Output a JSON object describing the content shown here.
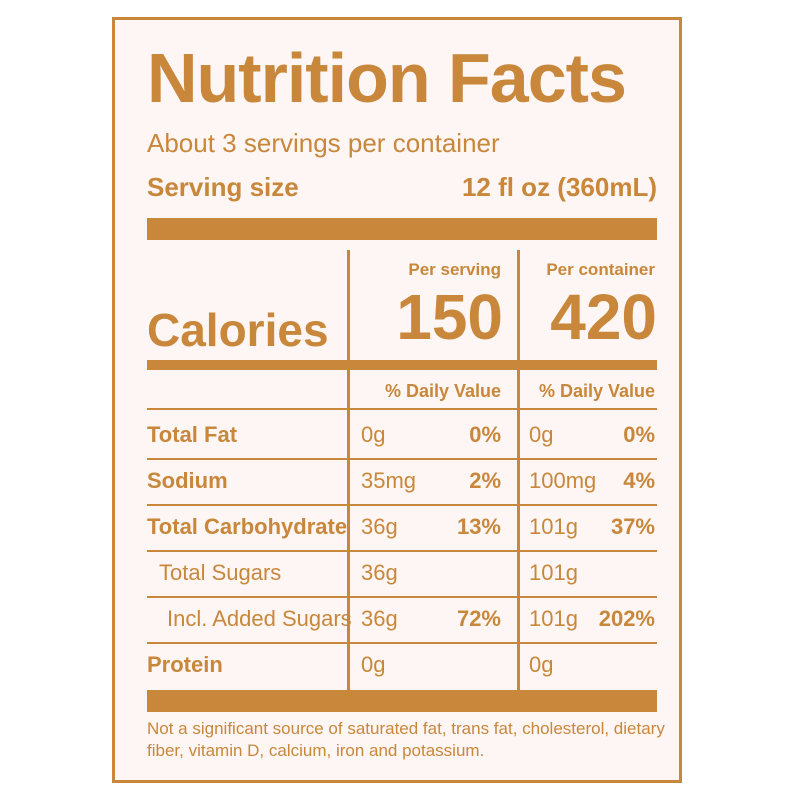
{
  "title": "Nutrition Facts",
  "servings_per_container": "About 3 servings per container",
  "serving_size": {
    "label": "Serving size",
    "value": "12 fl oz (360mL)"
  },
  "columns": {
    "per_serving": "Per serving",
    "per_container": "Per container"
  },
  "calories": {
    "label": "Calories",
    "per_serving": "150",
    "per_container": "420"
  },
  "daily_value_header": "% Daily Value",
  "nutrients": [
    {
      "name": "Total Fat",
      "bold": true,
      "serving_amount": "0g",
      "serving_dv": "0%",
      "container_amount": "0g",
      "container_dv": "0%"
    },
    {
      "name": "Sodium",
      "bold": true,
      "serving_amount": "35mg",
      "serving_dv": "2%",
      "container_amount": "100mg",
      "container_dv": "4%"
    },
    {
      "name": "Total Carbohydrate",
      "bold": true,
      "serving_amount": "36g",
      "serving_dv": "13%",
      "container_amount": "101g",
      "container_dv": "37%"
    },
    {
      "name": "Total Sugars",
      "bold": false,
      "serving_amount": "36g",
      "serving_dv": "",
      "container_amount": "101g",
      "container_dv": ""
    },
    {
      "name": "Incl. Added Sugars",
      "bold": false,
      "serving_amount": "36g",
      "serving_dv": "72%",
      "container_amount": "101g",
      "container_dv": "202%"
    },
    {
      "name": "Protein",
      "bold": true,
      "serving_amount": "0g",
      "serving_dv": "",
      "container_amount": "0g",
      "container_dv": ""
    }
  ],
  "footnote": "Not a significant source of saturated fat, trans fat, cholesterol, dietary fiber, vitamin D, calcium, iron and potassium.",
  "colors": {
    "ink": "#c8873a",
    "background": "#fdf6f4"
  }
}
